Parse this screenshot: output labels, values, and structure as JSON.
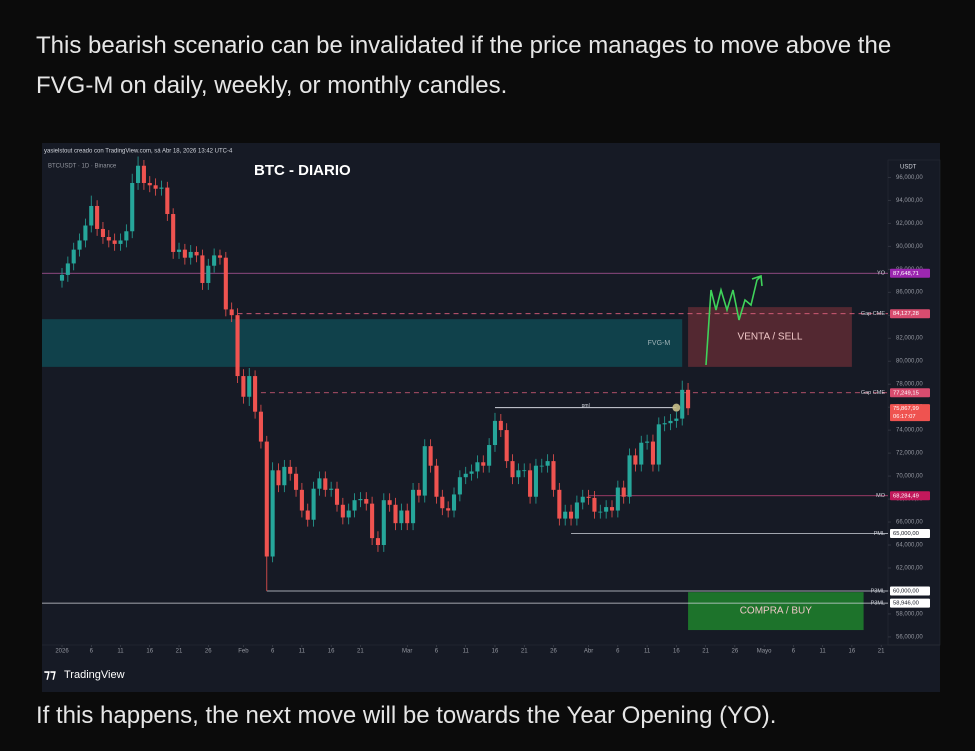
{
  "post": {
    "text_top": "This bearish scenario can be invalidated if the price manages to move above the FVG-M on daily, weekly, or monthly candles.",
    "text_bottom": "If this happens, the next move will be towards the Year Opening (YO)."
  },
  "chart_data": {
    "type": "candlestick",
    "header": "yasielstout creado con TradingView.com, sá Abr 18, 2026 13:42 UTC-4",
    "symbol": "BTCUSDT · 1D · Binance",
    "title": "BTC - DIARIO",
    "currency": "USDT",
    "brand": "TradingView",
    "up_color": "#26a69a",
    "down_color": "#ef5350",
    "x": [
      "2026-01-01",
      "2026-01-02",
      "2026-01-03",
      "2026-01-04",
      "2026-01-05",
      "2026-01-06",
      "2026-01-07",
      "2026-01-08",
      "2026-01-09",
      "2026-01-10",
      "2026-01-11",
      "2026-01-12",
      "2026-01-13",
      "2026-01-14",
      "2026-01-15",
      "2026-01-16",
      "2026-01-17",
      "2026-01-18",
      "2026-01-19",
      "2026-01-20",
      "2026-01-21",
      "2026-01-22",
      "2026-01-23",
      "2026-01-24",
      "2026-01-25",
      "2026-01-26",
      "2026-01-27",
      "2026-01-28",
      "2026-01-29",
      "2026-01-30",
      "2026-01-31",
      "2026-02-01",
      "2026-02-02",
      "2026-02-03",
      "2026-02-04",
      "2026-02-05",
      "2026-02-06",
      "2026-02-07",
      "2026-02-08",
      "2026-02-09",
      "2026-02-10",
      "2026-02-11",
      "2026-02-12",
      "2026-02-13",
      "2026-02-14",
      "2026-02-15",
      "2026-02-16",
      "2026-02-17",
      "2026-02-18",
      "2026-02-19",
      "2026-02-20",
      "2026-02-21",
      "2026-02-22",
      "2026-02-23",
      "2026-02-24",
      "2026-02-25",
      "2026-02-26",
      "2026-02-27",
      "2026-02-28",
      "2026-03-01",
      "2026-03-02",
      "2026-03-03",
      "2026-03-04",
      "2026-03-05",
      "2026-03-06",
      "2026-03-07",
      "2026-03-08",
      "2026-03-09",
      "2026-03-10",
      "2026-03-11",
      "2026-03-12",
      "2026-03-13",
      "2026-03-14",
      "2026-03-15",
      "2026-03-16",
      "2026-03-17",
      "2026-03-18",
      "2026-03-19",
      "2026-03-20",
      "2026-03-21",
      "2026-03-22",
      "2026-03-23",
      "2026-03-24",
      "2026-03-25",
      "2026-03-26",
      "2026-03-27",
      "2026-03-28",
      "2026-03-29",
      "2026-03-30",
      "2026-03-31",
      "2026-04-01",
      "2026-04-02",
      "2026-04-03",
      "2026-04-04",
      "2026-04-05",
      "2026-04-06",
      "2026-04-07",
      "2026-04-08",
      "2026-04-09",
      "2026-04-10",
      "2026-04-11",
      "2026-04-12",
      "2026-04-13",
      "2026-04-14",
      "2026-04-15",
      "2026-04-16",
      "2026-04-17",
      "2026-04-18"
    ],
    "open": [
      87000,
      87500,
      88500,
      89700,
      90500,
      91800,
      93500,
      91500,
      90800,
      90500,
      90200,
      90500,
      91300,
      95500,
      97000,
      95500,
      95300,
      95000,
      95100,
      92800,
      89500,
      89700,
      89000,
      89500,
      89200,
      86800,
      88300,
      89200,
      89000,
      84500,
      84000,
      78700,
      76900,
      78700,
      75600,
      73000,
      63000,
      70500,
      69200,
      70800,
      70200,
      68800,
      67000,
      66200,
      68900,
      69800,
      68800,
      68900,
      67500,
      66400,
      67000,
      67900,
      68000,
      67600,
      64600,
      64000,
      67900,
      67500,
      65900,
      67000,
      65900,
      68800,
      68300,
      72600,
      70900,
      68200,
      67200,
      67000,
      68400,
      69900,
      70200,
      70400,
      71200,
      70900,
      72700,
      74800,
      74000,
      71300,
      69900,
      70500,
      70500,
      68200,
      70900,
      70900,
      71300,
      68800,
      66300,
      66900,
      66300,
      67700,
      68200,
      68100,
      66900,
      66900,
      67300,
      67000,
      69000,
      68200,
      71800,
      71000,
      72900,
      73000,
      71000,
      74500,
      74600,
      74800,
      75000,
      77500
    ],
    "high": [
      88100,
      89100,
      90300,
      91100,
      92400,
      94400,
      94000,
      92100,
      91400,
      91100,
      91100,
      91900,
      96300,
      97800,
      97500,
      96100,
      95900,
      95700,
      95600,
      93300,
      90300,
      90200,
      90100,
      90000,
      89700,
      88900,
      89800,
      89700,
      89500,
      85100,
      84600,
      79300,
      79400,
      79200,
      76200,
      73500,
      71200,
      71100,
      71400,
      71400,
      70800,
      69400,
      67600,
      69500,
      70400,
      70400,
      69500,
      69500,
      68100,
      67600,
      68500,
      68600,
      68600,
      68200,
      65200,
      68500,
      68500,
      68100,
      67600,
      67600,
      69400,
      69400,
      73200,
      73200,
      71500,
      68800,
      67800,
      69000,
      70500,
      70800,
      71000,
      71800,
      71800,
      73300,
      75500,
      75400,
      74600,
      71900,
      71100,
      71100,
      71100,
      71500,
      71500,
      71900,
      71900,
      69400,
      67500,
      67500,
      68300,
      68800,
      68800,
      68700,
      67500,
      67900,
      67900,
      69600,
      69600,
      72400,
      72400,
      73500,
      73600,
      73600,
      75100,
      75200,
      75400,
      75600,
      78300,
      78100
    ],
    "low": [
      86400,
      86900,
      87900,
      89100,
      89900,
      91200,
      90900,
      90200,
      89900,
      89600,
      89600,
      89900,
      90700,
      94900,
      94900,
      94700,
      94400,
      94400,
      92200,
      88900,
      88900,
      88400,
      88400,
      88600,
      86200,
      86200,
      87700,
      88400,
      83900,
      83400,
      78100,
      76300,
      76100,
      75000,
      72400,
      60000,
      62500,
      68600,
      68600,
      69600,
      68200,
      66400,
      65600,
      65600,
      68300,
      68200,
      68200,
      66900,
      65800,
      65800,
      66400,
      67300,
      67000,
      64000,
      63400,
      63400,
      66900,
      65300,
      65300,
      65300,
      65300,
      67700,
      67700,
      70300,
      67600,
      66600,
      66400,
      66400,
      67800,
      69300,
      69600,
      69800,
      70300,
      70300,
      72100,
      73400,
      70700,
      69300,
      69300,
      69900,
      67600,
      67600,
      70300,
      70300,
      68200,
      65700,
      65700,
      65700,
      65700,
      67100,
      67500,
      66300,
      66300,
      66300,
      66400,
      66400,
      67600,
      67600,
      70400,
      70400,
      72300,
      70400,
      70400,
      73900,
      74000,
      74200,
      74400,
      75300
    ],
    "close": [
      87500,
      88500,
      89700,
      90500,
      91800,
      93500,
      91500,
      90800,
      90500,
      90200,
      90500,
      91300,
      95500,
      97000,
      95500,
      95300,
      95000,
      95100,
      92800,
      89500,
      89700,
      89000,
      89500,
      89200,
      86800,
      88300,
      89200,
      89000,
      84500,
      84000,
      78700,
      76900,
      78700,
      75600,
      73000,
      63000,
      70500,
      69200,
      70800,
      70200,
      68800,
      67000,
      66200,
      68900,
      69800,
      68800,
      68900,
      67500,
      66400,
      67000,
      67900,
      68000,
      67600,
      64600,
      64000,
      67900,
      67500,
      65900,
      67000,
      65900,
      68800,
      68300,
      72600,
      70900,
      68200,
      67200,
      67000,
      68400,
      69900,
      70200,
      70400,
      71200,
      70900,
      72700,
      74800,
      74000,
      71300,
      69900,
      70500,
      70500,
      68200,
      70900,
      70900,
      71300,
      68800,
      66300,
      66900,
      66300,
      67700,
      68200,
      68100,
      66900,
      66900,
      67300,
      67000,
      69000,
      68200,
      71800,
      71000,
      72900,
      73000,
      71000,
      74500,
      74600,
      74800,
      75000,
      77500,
      75900
    ],
    "xlim": [
      "2026-01-01",
      "2026-05-22"
    ],
    "xticks": [
      {
        "value": "2026-01-01",
        "label": "2026"
      },
      {
        "value": "2026-01-06",
        "label": "6"
      },
      {
        "value": "2026-01-11",
        "label": "11"
      },
      {
        "value": "2026-01-16",
        "label": "16"
      },
      {
        "value": "2026-01-21",
        "label": "21"
      },
      {
        "value": "2026-01-26",
        "label": "26"
      },
      {
        "value": "2026-02-01",
        "label": "Feb"
      },
      {
        "value": "2026-02-06",
        "label": "6"
      },
      {
        "value": "2026-02-11",
        "label": "11"
      },
      {
        "value": "2026-02-16",
        "label": "16"
      },
      {
        "value": "2026-02-21",
        "label": "21"
      },
      {
        "value": "2026-03-01",
        "label": "Mar"
      },
      {
        "value": "2026-03-06",
        "label": "6"
      },
      {
        "value": "2026-03-11",
        "label": "11"
      },
      {
        "value": "2026-03-16",
        "label": "16"
      },
      {
        "value": "2026-03-21",
        "label": "21"
      },
      {
        "value": "2026-03-26",
        "label": "26"
      },
      {
        "value": "2026-04-01",
        "label": "Abr"
      },
      {
        "value": "2026-04-06",
        "label": "6"
      },
      {
        "value": "2026-04-11",
        "label": "11"
      },
      {
        "value": "2026-04-16",
        "label": "16"
      },
      {
        "value": "2026-04-21",
        "label": "21"
      },
      {
        "value": "2026-04-26",
        "label": "26"
      },
      {
        "value": "2026-05-01",
        "label": "Mayo"
      },
      {
        "value": "2026-05-06",
        "label": "6"
      },
      {
        "value": "2026-05-11",
        "label": "11"
      },
      {
        "value": "2026-05-16",
        "label": "16"
      },
      {
        "value": "2026-05-21",
        "label": "21"
      }
    ],
    "ylim": [
      55300,
      97500
    ],
    "yticks": [
      {
        "value": 56000,
        "label": "56,000,00"
      },
      {
        "value": 58000,
        "label": "58,000,00"
      },
      {
        "value": 60000,
        "label": "60,000,00"
      },
      {
        "value": 62000,
        "label": "62,000,00"
      },
      {
        "value": 64000,
        "label": "64,000,00"
      },
      {
        "value": 66000,
        "label": "66,000,00"
      },
      {
        "value": 68000,
        "label": "68,000,00"
      },
      {
        "value": 70000,
        "label": "70,000,00"
      },
      {
        "value": 72000,
        "label": "72,000,00"
      },
      {
        "value": 74000,
        "label": "74,000,00"
      },
      {
        "value": 76000,
        "label": "76,000,00"
      },
      {
        "value": 78000,
        "label": "78,000,00"
      },
      {
        "value": 80000,
        "label": "80,000,00"
      },
      {
        "value": 82000,
        "label": "82,000,00"
      },
      {
        "value": 84000,
        "label": "84,000,00"
      },
      {
        "value": 86000,
        "label": "86,000,00"
      },
      {
        "value": 88000,
        "label": "88,000,00"
      },
      {
        "value": 90000,
        "label": "90,000,00"
      },
      {
        "value": 92000,
        "label": "92,000,00"
      },
      {
        "value": 94000,
        "label": "94,000,00"
      },
      {
        "value": 96000,
        "label": "96,000,00"
      }
    ],
    "levels": [
      {
        "name": "YO",
        "value": 87648.71,
        "label": "87,648,71",
        "start": "2026-01-01",
        "color": "#b3589e",
        "label_color": "#9c27b0",
        "dashed": false
      },
      {
        "name": "Gap CME",
        "value": 84127.28,
        "label": "84,127,28",
        "start": "2026-01-31",
        "color": "#e0607e",
        "label_color": "#d84c6f",
        "dashed": true
      },
      {
        "name": "Gap CME",
        "value": 77249.15,
        "label": "77,249,15",
        "start": "2026-02-04",
        "color": "#e0607e",
        "label_color": "#d84c6f",
        "dashed": true
      },
      {
        "name": "MO",
        "value": 68284.49,
        "label": "68,284,49",
        "start": "2026-04-01",
        "color": "#c2457a",
        "label_color": "#c2185b",
        "dashed": false
      },
      {
        "name": "PML",
        "value": 65000,
        "label": "65,000,00",
        "start": "2026-03-29",
        "color": "#d1d4dc",
        "label_color": "#ffffff",
        "dashed": false
      },
      {
        "name": "P3ML",
        "value": 60000,
        "label": "60,000,00",
        "start": "2026-02-05",
        "color": "#d1d4dc",
        "label_color": "#ffffff",
        "dashed": false
      },
      {
        "name": "P3ML",
        "value": 58946,
        "label": "58,946,00",
        "start": "2026-01-01",
        "color": "#d1d4dc",
        "label_color": "#ffffff",
        "dashed": false
      }
    ],
    "current_price": {
      "value": 75867.99,
      "label": "75,867,99",
      "countdown": "06:17:07",
      "color": "#ef5350"
    },
    "pml_line": {
      "label": "pml",
      "value": 75950,
      "start": "2026-03-16",
      "end": "2026-04-16",
      "color": "#d1d4dc"
    },
    "zones": [
      {
        "label": "FVG-M",
        "low": 79500,
        "high": 83650,
        "start": "2026-01-01",
        "end": "2026-04-17",
        "color": "#0f4650",
        "label_pos": "right"
      },
      {
        "label": "VENTA / SELL",
        "low": 79500,
        "high": 84700,
        "start": "2026-04-18",
        "end": "2026-05-16",
        "color": "#5a2a33",
        "label_pos": "center"
      },
      {
        "label": "COMPRA / BUY",
        "low": 56600,
        "high": 59900,
        "start": "2026-04-18",
        "end": "2026-05-18",
        "color": "#1e7d2c",
        "label_pos": "center"
      }
    ]
  }
}
